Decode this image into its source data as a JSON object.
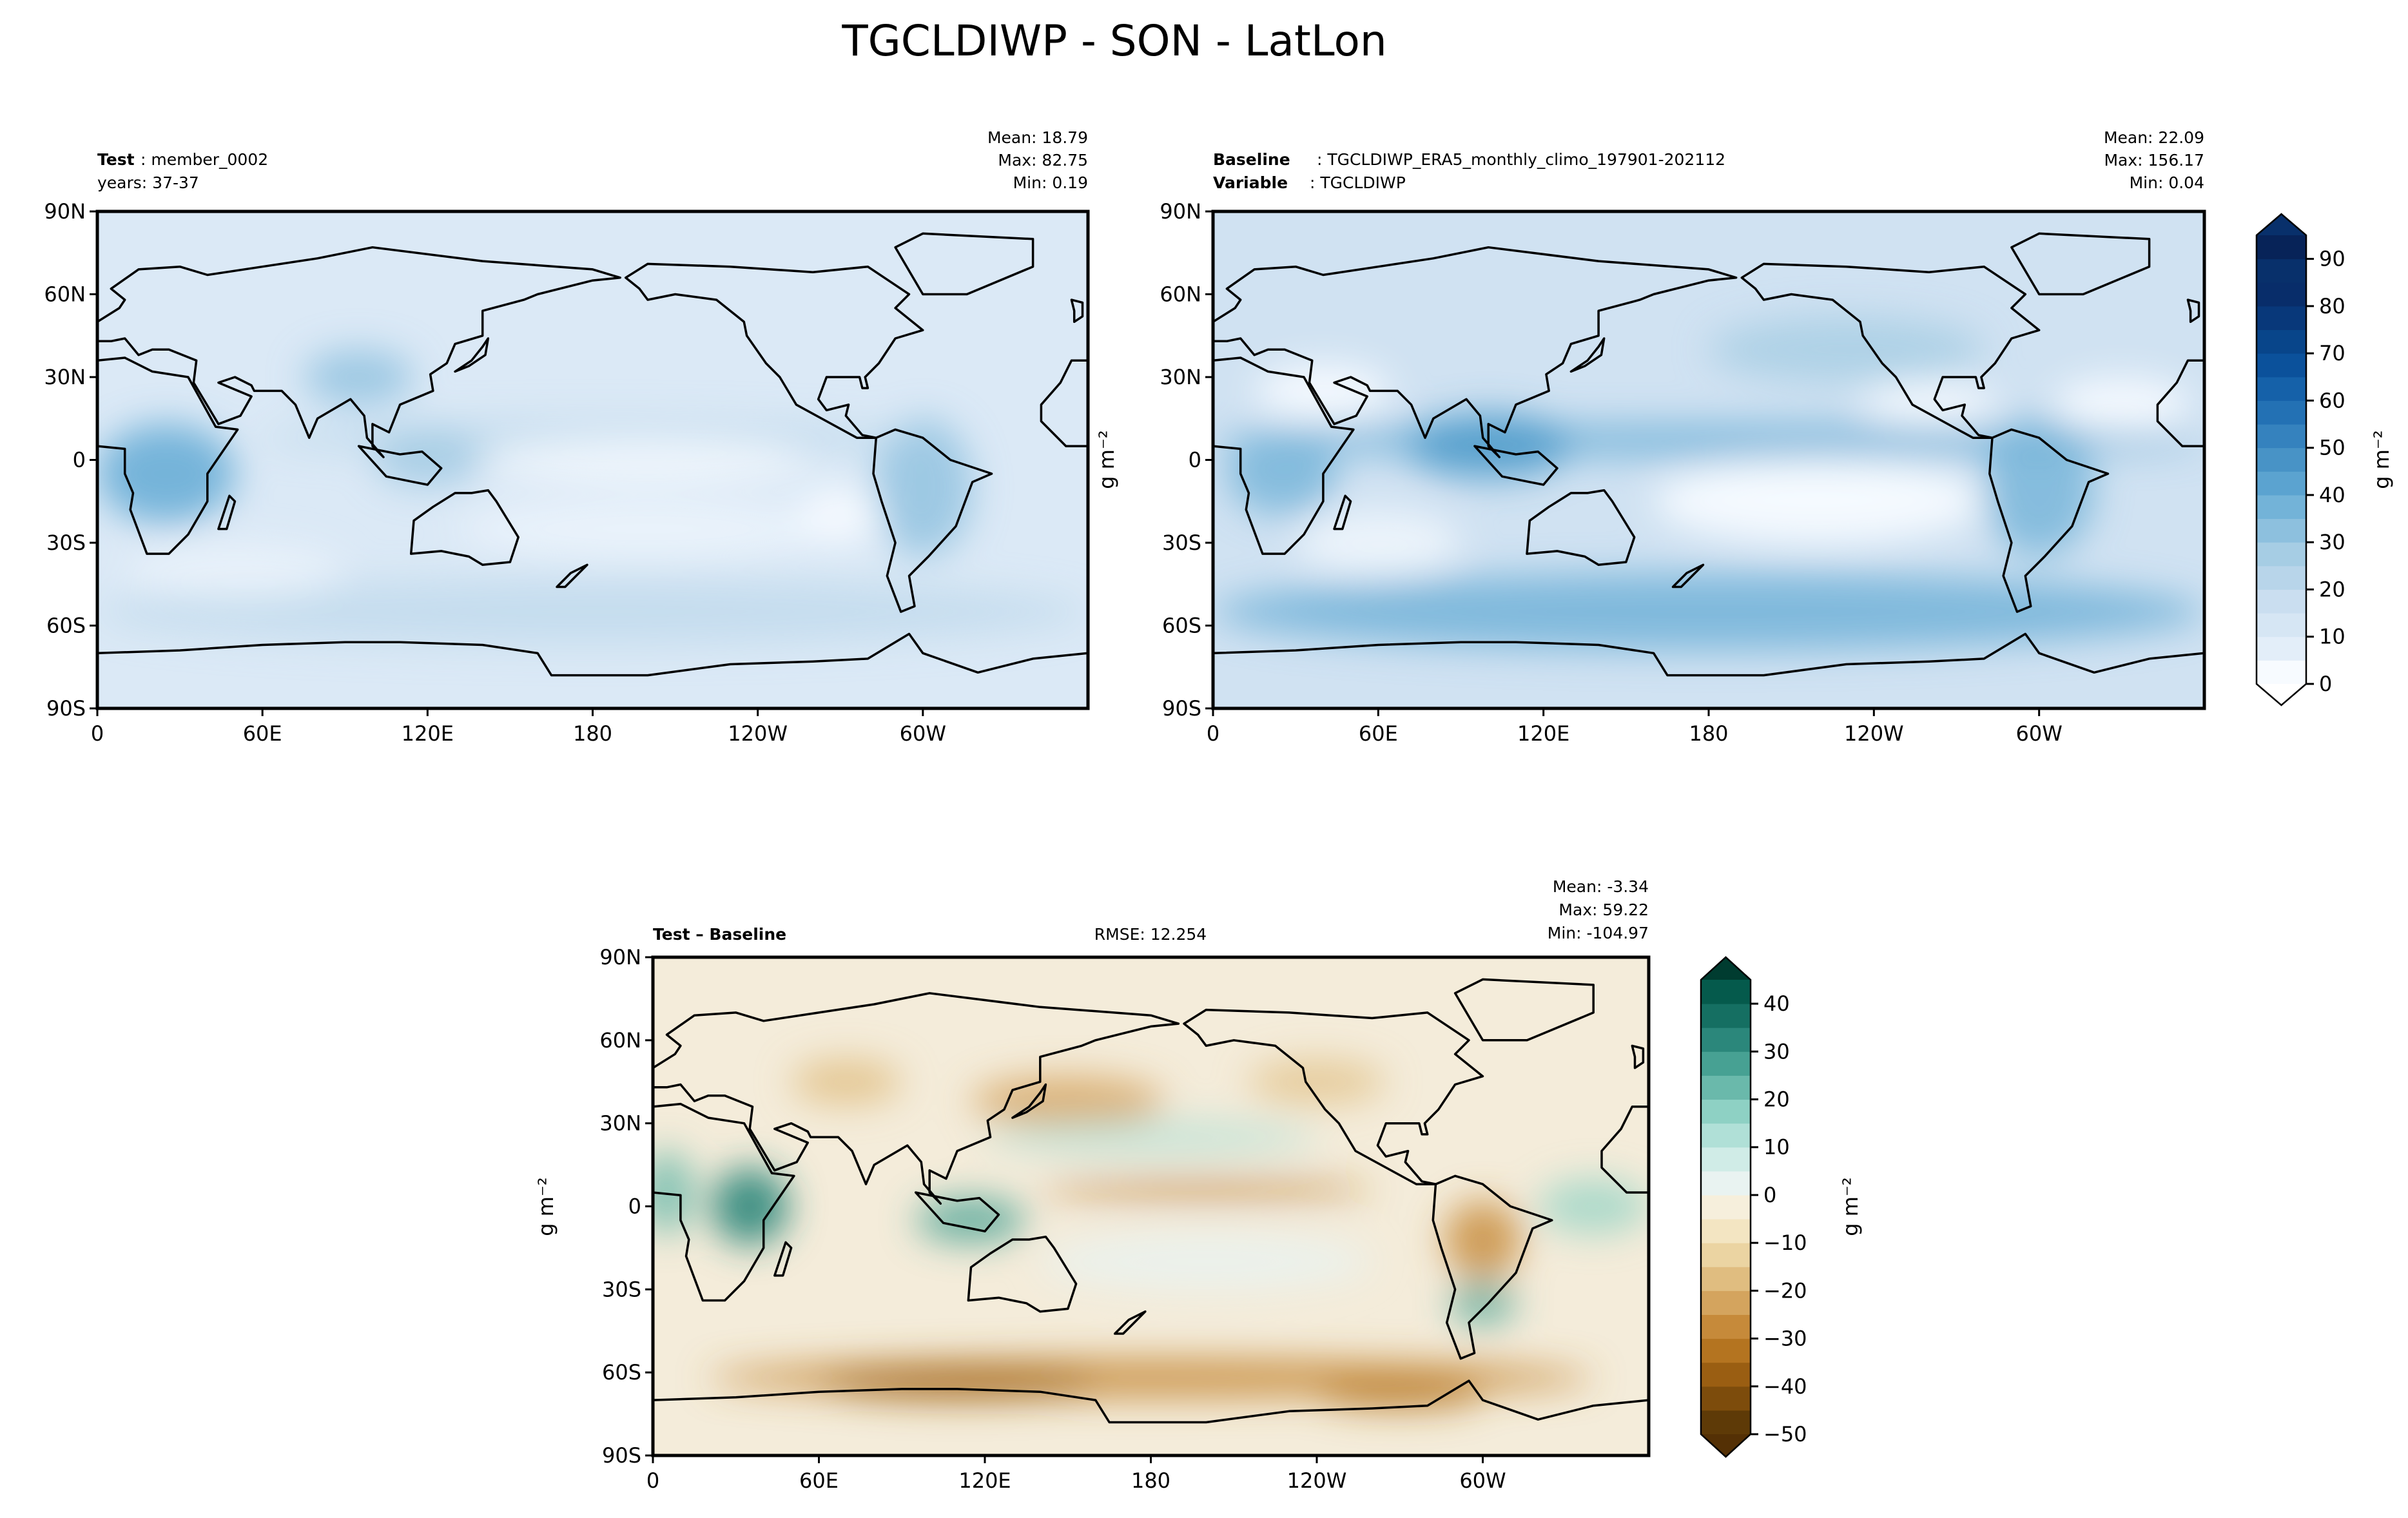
{
  "title": "TGCLDIWP - SON - LatLon",
  "chart_data": [
    {
      "type": "heatmap",
      "subtype": "lat-lon map",
      "panel": "test",
      "header_bold": "Test",
      "header_value": ": member_0002",
      "subheader": "years: 37-37",
      "stats": {
        "mean": "Mean: 18.79",
        "max": "Max: 82.75",
        "min": "Min:  0.19"
      },
      "xticks": [
        "0",
        "60E",
        "120E",
        "180",
        "120W",
        "60W"
      ],
      "xtick_lons": [
        0,
        60,
        120,
        180,
        240,
        300
      ],
      "yticks": [
        "90N",
        "60N",
        "30N",
        "0",
        "30S",
        "60S",
        "90S"
      ],
      "ytick_lats": [
        90,
        60,
        30,
        0,
        -30,
        -60,
        -90
      ],
      "xlim": [
        0,
        360
      ],
      "ylim": [
        -90,
        90
      ]
    },
    {
      "type": "heatmap",
      "subtype": "lat-lon map",
      "panel": "baseline",
      "header_bold": "Baseline",
      "header_value": ": TGCLDIWP_ERA5_monthly_climo_197901-202112",
      "subheader_bold": "Variable",
      "subheader_value": ": TGCLDIWP",
      "stats": {
        "mean": "Mean: 22.09",
        "max": "Max: 156.17",
        "min": "Min:  0.04"
      },
      "ylabel": "g m⁻²",
      "xticks": [
        "0",
        "60E",
        "120E",
        "180",
        "120W",
        "60W"
      ],
      "yticks": [
        "90N",
        "60N",
        "30N",
        "0",
        "30S",
        "60S",
        "90S"
      ],
      "xlim": [
        0,
        360
      ],
      "ylim": [
        -90,
        90
      ]
    },
    {
      "type": "heatmap",
      "subtype": "lat-lon map",
      "panel": "difference",
      "header_bold": "Test – Baseline",
      "rmse": "RMSE: 12.254",
      "stats": {
        "mean": "Mean: -3.34",
        "max": "Max: 59.22",
        "min": "Min: -104.97"
      },
      "ylabel": "g m⁻²",
      "xticks": [
        "0",
        "60E",
        "120E",
        "180",
        "120W",
        "60W"
      ],
      "yticks": [
        "90N",
        "60N",
        "30N",
        "0",
        "30S",
        "60S",
        "90S"
      ],
      "xlim": [
        0,
        360
      ],
      "ylim": [
        -90,
        90
      ]
    }
  ],
  "colorbars": {
    "main": {
      "label": "g m⁻²",
      "range": [
        0,
        95
      ],
      "step": 5,
      "extend": "both",
      "ticks": [
        0,
        10,
        20,
        30,
        40,
        50,
        60,
        70,
        80,
        90
      ],
      "colormap": "Blues",
      "colors": [
        "#f7fbff",
        "#e3eef9",
        "#d6e6f4",
        "#cadef0",
        "#b8d5ea",
        "#a6cde4",
        "#8dc0de",
        "#73b3d8",
        "#5ba3d0",
        "#4893c6",
        "#3582be",
        "#2371b4",
        "#1561a9",
        "#0b519b",
        "#08458a",
        "#08387a",
        "#082d6a",
        "#08306b",
        "#072358"
      ],
      "under": "#ffffff",
      "over": "#08306b"
    },
    "diff": {
      "label": "g m⁻²",
      "range": [
        -50,
        45
      ],
      "step": 5,
      "extend": "both",
      "ticks": [
        -50,
        -40,
        -30,
        -20,
        -10,
        0,
        10,
        20,
        30,
        40
      ],
      "colormap": "BrBG",
      "colors": [
        "#5e3a07",
        "#7d4c0c",
        "#9a5e12",
        "#b47420",
        "#c68a3a",
        "#d4a45e",
        "#e0bd80",
        "#ebd4a2",
        "#f3e5c2",
        "#f6efdc",
        "#e9f3f1",
        "#d0ece7",
        "#b0e0d7",
        "#8ed1c4",
        "#6ab9ab",
        "#47a193",
        "#2b877b",
        "#156f62",
        "#055a4c"
      ],
      "under": "#543005",
      "over": "#003c30"
    }
  }
}
